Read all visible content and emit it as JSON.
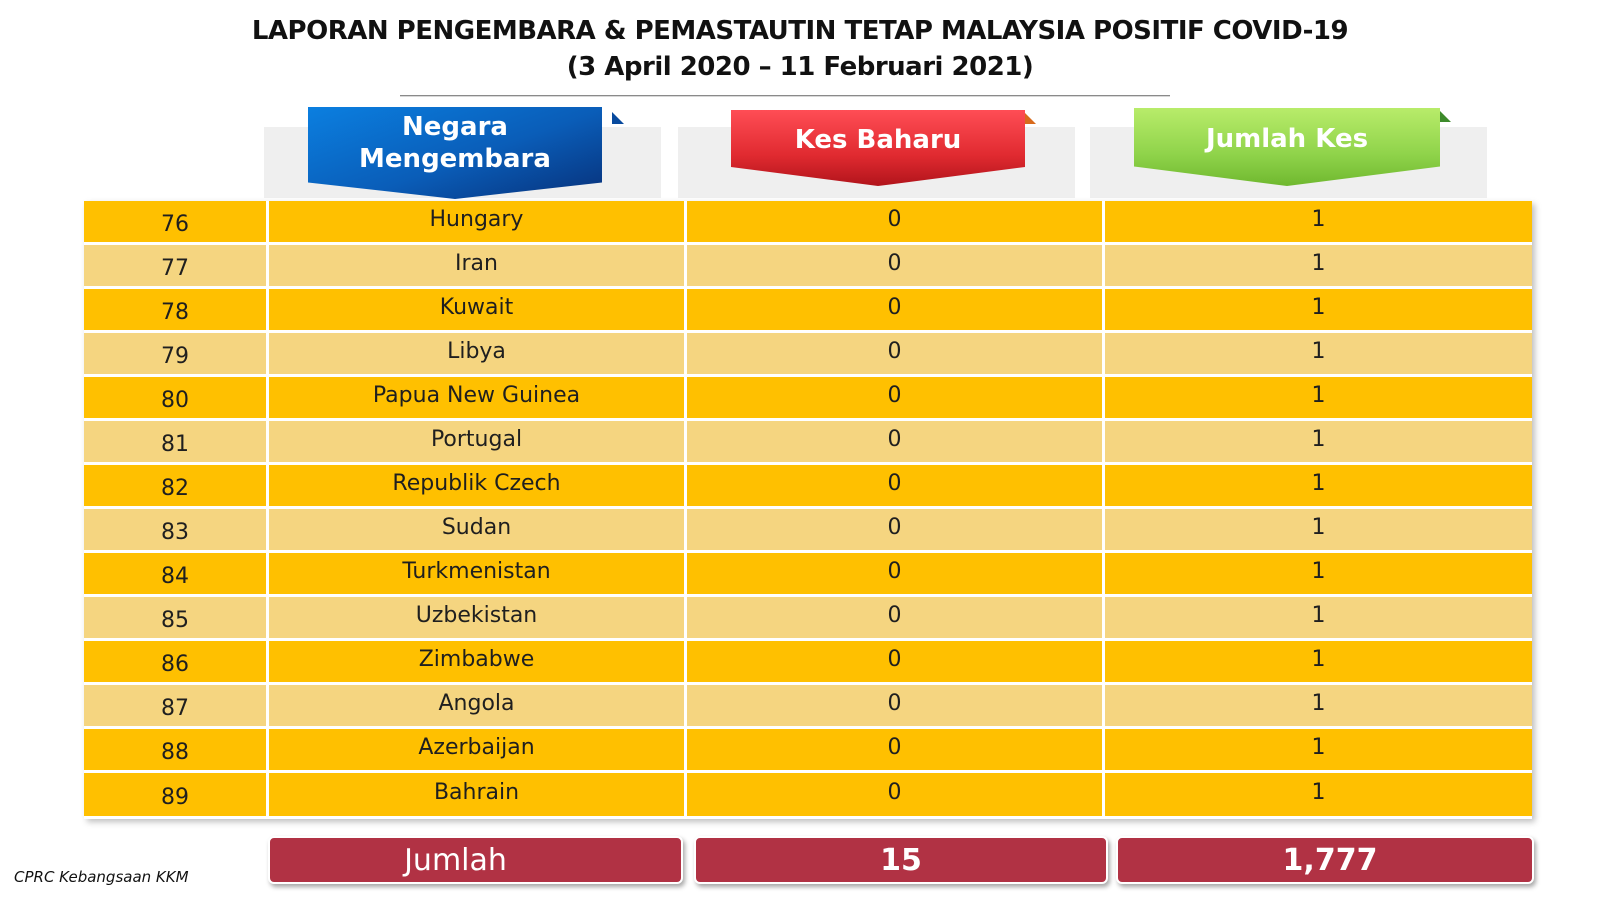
{
  "title": {
    "line1": "LAPORAN PENGEMBARA & PEMASTAUTIN TETAP MALAYSIA POSITIF COVID-19",
    "line2": "(3 April 2020 – 11 Februari 2021)"
  },
  "headers": {
    "country_line1": "Negara",
    "country_line2": "Mengembara",
    "new_cases": "Kes Baharu",
    "total_cases": "Jumlah Kes"
  },
  "rows": [
    {
      "no": "76",
      "country": "Hungary",
      "new": "0",
      "total": "1"
    },
    {
      "no": "77",
      "country": "Iran",
      "new": "0",
      "total": "1"
    },
    {
      "no": "78",
      "country": "Kuwait",
      "new": "0",
      "total": "1"
    },
    {
      "no": "79",
      "country": "Libya",
      "new": "0",
      "total": "1"
    },
    {
      "no": "80",
      "country": "Papua New Guinea",
      "new": "0",
      "total": "1"
    },
    {
      "no": "81",
      "country": "Portugal",
      "new": "0",
      "total": "1"
    },
    {
      "no": "82",
      "country": "Republik Czech",
      "new": "0",
      "total": "1"
    },
    {
      "no": "83",
      "country": "Sudan",
      "new": "0",
      "total": "1"
    },
    {
      "no": "84",
      "country": "Turkmenistan",
      "new": "0",
      "total": "1"
    },
    {
      "no": "85",
      "country": "Uzbekistan",
      "new": "0",
      "total": "1"
    },
    {
      "no": "86",
      "country": "Zimbabwe",
      "new": "0",
      "total": "1"
    },
    {
      "no": "87",
      "country": "Angola",
      "new": "0",
      "total": "1"
    },
    {
      "no": "88",
      "country": "Azerbaijan",
      "new": "0",
      "total": "1"
    },
    {
      "no": "89",
      "country": "Bahrain",
      "new": "0",
      "total": "1"
    }
  ],
  "totals": {
    "label": "Jumlah",
    "new_cases": "15",
    "total_cases": "1,777"
  },
  "source": "CPRC Kebangsaan KKM",
  "colors": {
    "row_dark": "#ffc000",
    "row_light": "#f5d580",
    "total_bg": "#b13244",
    "header_blue": "#0a5db8",
    "header_red": "#e02a30",
    "header_green": "#8fd34a"
  }
}
